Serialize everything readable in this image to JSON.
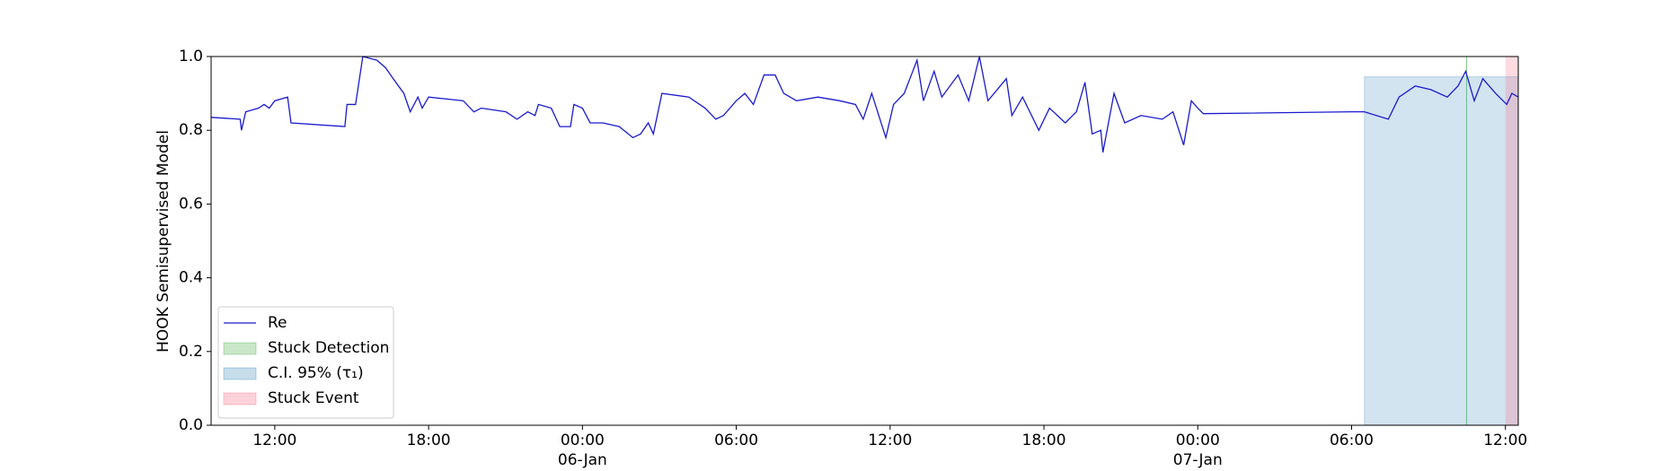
{
  "chart_data": {
    "type": "line",
    "y_label": "HOOK Semisupervised Model",
    "xlim": [
      "1900-01-05 09:31",
      "1900-01-07 12:30"
    ],
    "ylim": [
      0,
      1
    ],
    "yticks": [
      {
        "value": 0,
        "label": "0.0"
      },
      {
        "value": 0.2,
        "label": "0.2"
      },
      {
        "value": 0.4,
        "label": "0.4"
      },
      {
        "value": 0.6,
        "label": "0.6"
      },
      {
        "value": 0.8,
        "label": "0.8"
      },
      {
        "value": 1,
        "label": "1.0"
      }
    ],
    "xticks": [
      {
        "value": "1900-01-05 12:00",
        "label": "12:00"
      },
      {
        "value": "1900-01-05 18:00",
        "label": "18:00"
      },
      {
        "value": "1900-01-06 00:00",
        "label": "00:00\n06-Jan\n1900"
      },
      {
        "value": "1900-01-06 06:00",
        "label": "06:00"
      },
      {
        "value": "1900-01-06 12:00",
        "label": "12:00"
      },
      {
        "value": "1900-01-06 18:00",
        "label": "18:00"
      },
      {
        "value": "1900-01-07 00:00",
        "label": "00:00\n07-Jan"
      },
      {
        "value": "1900-01-07 06:00",
        "label": "06:00"
      },
      {
        "value": "1900-01-07 12:00",
        "label": "12:00"
      }
    ],
    "legend": "lower left",
    "x": [
      "1900-01-05 09:31",
      "1900-01-05 10:39",
      "1900-01-05 10:42",
      "1900-01-05 10:52",
      "1900-01-05 11:22",
      "1900-01-05 11:35",
      "1900-01-05 11:47",
      "1900-01-05 12:00",
      "1900-01-05 12:30",
      "1900-01-05 12:38",
      "1900-01-05 14:44",
      "1900-01-05 14:49",
      "1900-01-05 15:09",
      "1900-01-05 15:26",
      "1900-01-05 15:59",
      "1900-01-05 16:19",
      "1900-01-05 16:37",
      "1900-01-05 17:02",
      "1900-01-05 17:17",
      "1900-01-05 17:35",
      "1900-01-05 17:45",
      "1900-01-05 18:00",
      "1900-01-05 19:21",
      "1900-01-05 19:46",
      "1900-01-05 20:03",
      "1900-01-05 21:01",
      "1900-01-05 21:27",
      "1900-01-05 21:52",
      "1900-01-05 22:09",
      "1900-01-05 22:17",
      "1900-01-05 22:47",
      "1900-01-05 23:07",
      "1900-01-05 23:32",
      "1900-01-05 23:40",
      "1900-01-06 00:00",
      "1900-01-06 00:18",
      "1900-01-06 00:48",
      "1900-01-06 01:26",
      "1900-01-06 01:58",
      "1900-01-06 02:16",
      "1900-01-06 02:34",
      "1900-01-06 02:46",
      "1900-01-06 03:06",
      "1900-01-06 04:09",
      "1900-01-06 04:47",
      "1900-01-06 05:12",
      "1900-01-06 05:30",
      "1900-01-06 06:00",
      "1900-01-06 06:20",
      "1900-01-06 06:40",
      "1900-01-06 07:05",
      "1900-01-06 07:31",
      "1900-01-06 07:51",
      "1900-01-06 08:21",
      "1900-01-06 09:11",
      "1900-01-06 10:02",
      "1900-01-06 10:39",
      "1900-01-06 10:57",
      "1900-01-06 11:17",
      "1900-01-06 11:50",
      "1900-01-06 12:08",
      "1900-01-06 12:33",
      "1900-01-06 12:53",
      "1900-01-06 13:03",
      "1900-01-06 13:18",
      "1900-01-06 13:43",
      "1900-01-06 14:01",
      "1900-01-06 14:39",
      "1900-01-06 15:04",
      "1900-01-06 15:29",
      "1900-01-06 15:49",
      "1900-01-06 16:32",
      "1900-01-06 16:45",
      "1900-01-06 17:10",
      "1900-01-06 17:48",
      "1900-01-06 18:13",
      "1900-01-06 18:50",
      "1900-01-06 19:16",
      "1900-01-06 19:36",
      "1900-01-06 19:53",
      "1900-01-06 20:13",
      "1900-01-06 20:18",
      "1900-01-06 20:44",
      "1900-01-06 21:09",
      "1900-01-06 21:47",
      "1900-01-06 22:37",
      "1900-01-06 23:02",
      "1900-01-06 23:27",
      "1900-01-06 23:45",
      "1900-01-07 00:00",
      "1900-01-07 00:13",
      "1900-01-07 06:00",
      "1900-01-07 06:30",
      "1900-01-07 07:26",
      "1900-01-07 07:51",
      "1900-01-07 08:29",
      "1900-01-07 09:06",
      "1900-01-07 09:44",
      "1900-01-07 10:09",
      "1900-01-07 10:27",
      "1900-01-07 10:47",
      "1900-01-07 11:07",
      "1900-01-07 11:37",
      "1900-01-07 12:03",
      "1900-01-07 12:15",
      "1900-01-07 12:30"
    ],
    "series": [
      {
        "name": "Re",
        "color": "#1a1acc",
        "values": [
          0.835,
          0.83,
          0.8,
          0.85,
          0.86,
          0.87,
          0.86,
          0.88,
          0.89,
          0.82,
          0.81,
          0.87,
          0.87,
          1.0,
          0.99,
          0.97,
          0.94,
          0.9,
          0.85,
          0.89,
          0.86,
          0.89,
          0.88,
          0.85,
          0.86,
          0.85,
          0.83,
          0.85,
          0.84,
          0.87,
          0.86,
          0.81,
          0.81,
          0.87,
          0.86,
          0.82,
          0.82,
          0.81,
          0.78,
          0.79,
          0.82,
          0.79,
          0.9,
          0.89,
          0.86,
          0.83,
          0.84,
          0.88,
          0.9,
          0.87,
          0.95,
          0.95,
          0.9,
          0.88,
          0.89,
          0.88,
          0.87,
          0.83,
          0.9,
          0.78,
          0.87,
          0.9,
          0.96,
          0.99,
          0.88,
          0.96,
          0.89,
          0.95,
          0.88,
          1.0,
          0.88,
          0.94,
          0.84,
          0.89,
          0.8,
          0.86,
          0.82,
          0.85,
          0.93,
          0.79,
          0.8,
          0.74,
          0.9,
          0.82,
          0.84,
          0.83,
          0.85,
          0.76,
          0.88,
          0.86,
          0.845,
          0.85,
          0.85,
          0.83,
          0.89,
          0.92,
          0.91,
          0.89,
          0.92,
          0.96,
          0.88,
          0.94,
          0.9,
          0.87,
          0.9,
          0.89
        ]
      }
    ],
    "regions": [
      {
        "name": "Stuck Detection",
        "color": "#2ca02c",
        "start": "1900-01-07 10:28",
        "end": "1900-01-07 10:30"
      },
      {
        "name": "C.I. 95% (τ₁)",
        "color": "#1f77b4",
        "start": "1900-01-07 06:30",
        "end": "1900-01-07 12:30",
        "top": 0.945
      },
      {
        "name": "Stuck Event",
        "color": "#ff4d6a",
        "start": "1900-01-07 12:00",
        "end": "1900-01-07 12:30"
      }
    ]
  }
}
